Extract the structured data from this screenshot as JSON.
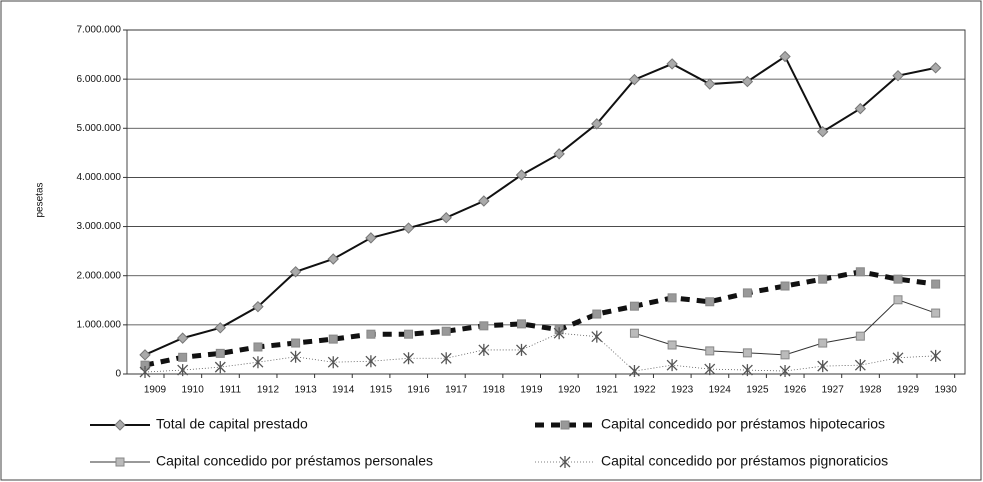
{
  "chart_data": {
    "type": "line",
    "y_label": "pesetas",
    "categories": [
      "1909",
      "1910",
      "1911",
      "1912",
      "1913",
      "1914",
      "1915",
      "1916",
      "1917",
      "1918",
      "1919",
      "1920",
      "1921",
      "1922",
      "1923",
      "1924",
      "1925",
      "1926",
      "1927",
      "1928",
      "1929",
      "1930"
    ],
    "series": [
      {
        "name": "Total de capital prestado",
        "color": "#111111",
        "values": [
          390000,
          730000,
          940000,
          1370000,
          2080000,
          2340000,
          2770000,
          2970000,
          3180000,
          3520000,
          4050000,
          4480000,
          5090000,
          5990000,
          6310000,
          5900000,
          5950000,
          6460000,
          4930000,
          5400000,
          6070000,
          6230000
        ]
      },
      {
        "name": "Capital concedido por préstamos hipotecarios",
        "color": "#111111",
        "values": [
          180000,
          340000,
          420000,
          550000,
          630000,
          710000,
          810000,
          810000,
          870000,
          980000,
          1020000,
          900000,
          1220000,
          1380000,
          1550000,
          1470000,
          1650000,
          1790000,
          1930000,
          2080000,
          1930000,
          1830000
        ]
      },
      {
        "name": "Capital concedido por préstamos personales",
        "color": "#333333",
        "values": [
          null,
          null,
          null,
          null,
          null,
          null,
          null,
          null,
          null,
          null,
          null,
          null,
          null,
          830000,
          590000,
          470000,
          430000,
          390000,
          630000,
          770000,
          1510000,
          1240000
        ]
      },
      {
        "name": "Capital concedido por préstamos pignoraticios",
        "color": "#555555",
        "values": [
          40000,
          80000,
          140000,
          240000,
          350000,
          240000,
          260000,
          320000,
          320000,
          490000,
          490000,
          830000,
          760000,
          60000,
          180000,
          100000,
          80000,
          60000,
          160000,
          180000,
          330000,
          370000
        ]
      }
    ],
    "ylim": [
      0,
      7000000
    ],
    "yticks": [
      0,
      {
        "value": 1000000,
        "label": "1.000.000"
      },
      {
        "value": 2000000,
        "label": "2.000.000"
      },
      {
        "value": 3000000,
        "label": "3.000.000"
      },
      {
        "value": 4000000,
        "label": "4.000.000"
      },
      {
        "value": 5000000,
        "label": "5.000.000"
      },
      {
        "value": 6000000,
        "label": "6.000.000"
      },
      {
        "value": 7000000,
        "label": "7.000.000"
      }
    ],
    "grid": true
  }
}
